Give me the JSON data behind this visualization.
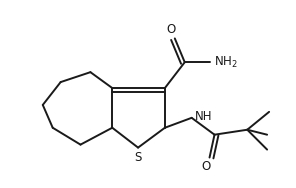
{
  "bg_color": "#ffffff",
  "line_color": "#1a1a1a",
  "line_width": 1.4,
  "font_size": 8.5,
  "figsize": [
    2.96,
    1.88
  ],
  "dpi": 100,
  "xlim": [
    0,
    296
  ],
  "ylim": [
    0,
    188
  ]
}
